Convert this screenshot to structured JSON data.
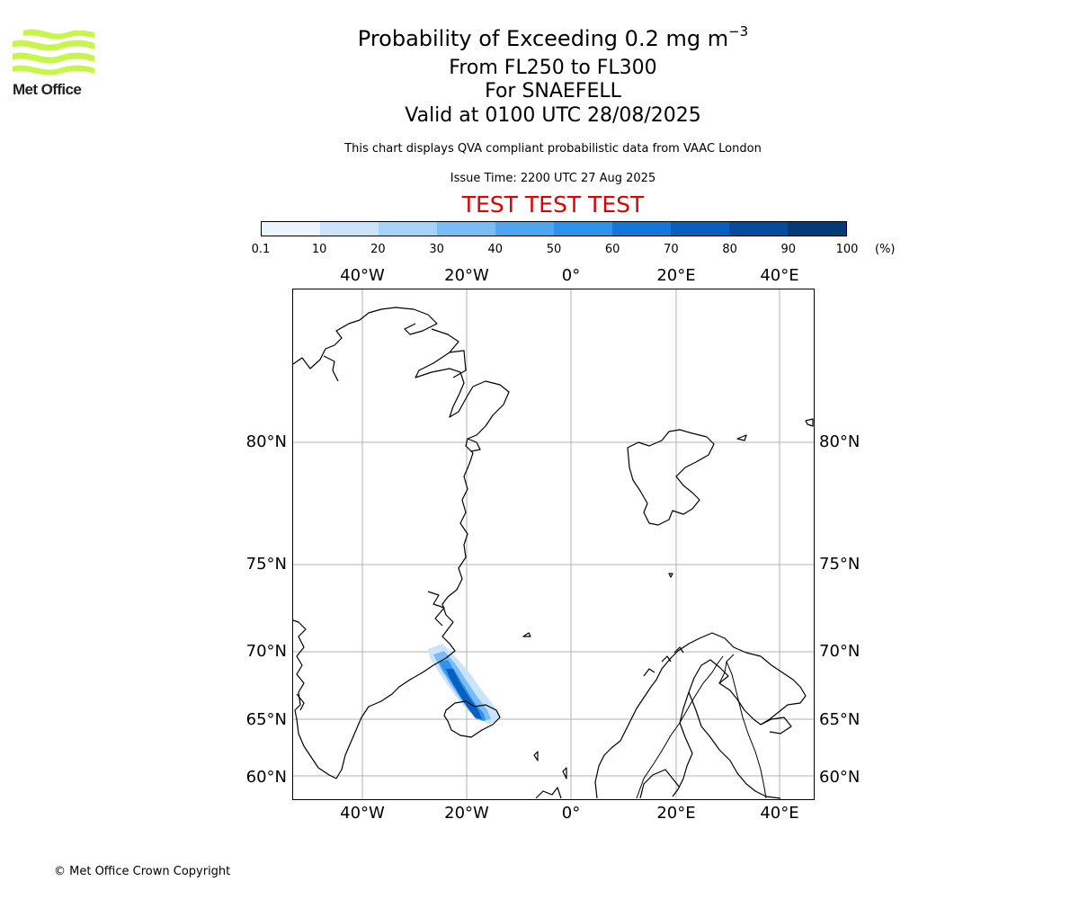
{
  "logo": {
    "name": "met-office-logo",
    "text": "Met Office",
    "color": "#c8f54a"
  },
  "title": {
    "line1": "Probability of Exceeding 0.2 mg m",
    "line1_sup": "−3",
    "line2": "From FL250 to FL300",
    "line3": "For SNAEFELL",
    "line4": "Valid at 0100 UTC 28/08/2025",
    "info": "This chart displays QVA compliant probabilistic data from VAAC London",
    "issue_time": "Issue Time: 2200 UTC 27 Aug 2025",
    "test_label": "TEST TEST TEST"
  },
  "colorbar": {
    "ticks": [
      "0.1",
      "10",
      "20",
      "30",
      "40",
      "50",
      "60",
      "70",
      "80",
      "90",
      "100"
    ],
    "unit": "(%)",
    "colors": [
      "#eaf4ff",
      "#cbe4fb",
      "#a6d1f8",
      "#7bbcf5",
      "#4ea6f1",
      "#2e91ec",
      "#1576d9",
      "#075fc0",
      "#044b9d",
      "#053a79",
      "#042c59"
    ]
  },
  "map": {
    "lon_labels_top": [
      "40°W",
      "20°W",
      "0°",
      "20°E",
      "40°E"
    ],
    "lon_labels_bottom": [
      "40°W",
      "20°W",
      "0°",
      "20°E",
      "40°E"
    ],
    "lat_labels_left": [
      "80°N",
      "75°N",
      "70°N",
      "65°N",
      "60°N"
    ],
    "lat_labels_right": [
      "80°N",
      "75°N",
      "70°N",
      "65°N",
      "60°N"
    ]
  },
  "footer": {
    "copyright": "© Met Office Crown Copyright"
  }
}
